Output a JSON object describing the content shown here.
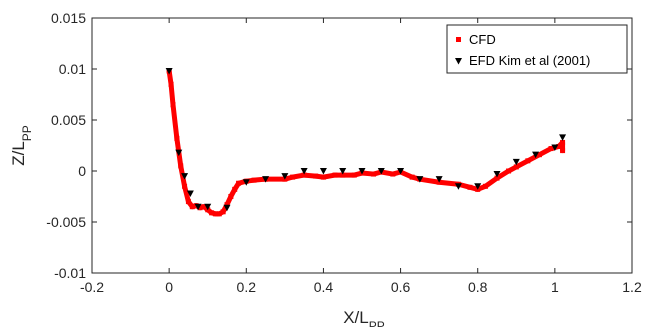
{
  "chart_data": {
    "type": "line",
    "title": "",
    "xlabel": {
      "main": "X/L",
      "sub": "PP"
    },
    "ylabel": {
      "main": "Z/L",
      "sub": "PP"
    },
    "xlim": [
      -0.2,
      1.2
    ],
    "ylim": [
      -0.01,
      0.015
    ],
    "xticks": [
      "-0.2",
      "0",
      "0.2",
      "0.4",
      "0.6",
      "0.8",
      "1",
      "1.2"
    ],
    "xtick_values": [
      -0.2,
      0,
      0.2,
      0.4,
      0.6,
      0.8,
      1.0,
      1.2
    ],
    "yticks": [
      "-0.01",
      "-0.005",
      "0",
      "0.005",
      "0.01",
      "0.015"
    ],
    "ytick_values": [
      -0.01,
      -0.005,
      0,
      0.005,
      0.01,
      0.015
    ],
    "grid": false,
    "legend_position": "top-right",
    "series": [
      {
        "name": "CFD",
        "style": "thick-line-square-markers",
        "color": "#ff0000",
        "x": [
          0.0,
          0.005,
          0.01,
          0.02,
          0.03,
          0.04,
          0.05,
          0.06,
          0.07,
          0.08,
          0.09,
          0.1,
          0.11,
          0.12,
          0.13,
          0.14,
          0.15,
          0.16,
          0.17,
          0.18,
          0.2,
          0.22,
          0.25,
          0.3,
          0.32,
          0.35,
          0.38,
          0.4,
          0.43,
          0.45,
          0.48,
          0.5,
          0.53,
          0.55,
          0.58,
          0.6,
          0.63,
          0.65,
          0.7,
          0.75,
          0.78,
          0.8,
          0.82,
          0.85,
          0.88,
          0.9,
          0.93,
          0.96,
          0.99,
          1.01,
          1.02,
          1.02
        ],
        "y": [
          0.0098,
          0.0085,
          0.0065,
          0.0032,
          0.0005,
          -0.0015,
          -0.003,
          -0.0035,
          -0.0034,
          -0.0036,
          -0.0035,
          -0.0038,
          -0.0041,
          -0.0042,
          -0.0042,
          -0.004,
          -0.0033,
          -0.0025,
          -0.0018,
          -0.0012,
          -0.001,
          -0.0009,
          -0.0008,
          -0.0008,
          -0.0006,
          -0.0004,
          -0.0005,
          -0.0006,
          -0.0004,
          -0.0004,
          -0.0004,
          -0.0002,
          -0.0003,
          -0.0001,
          -0.0003,
          -0.0001,
          -0.0006,
          -0.0008,
          -0.0011,
          -0.0013,
          -0.0016,
          -0.0018,
          -0.0015,
          -0.0007,
          0.0,
          0.0004,
          0.001,
          0.0016,
          0.0022,
          0.0024,
          0.0028,
          0.002
        ]
      },
      {
        "name": "EFD Kim et al (2001)",
        "style": "triangle-down-markers",
        "color": "#000000",
        "x": [
          0.0,
          0.025,
          0.04,
          0.055,
          0.075,
          0.1,
          0.15,
          0.2,
          0.25,
          0.3,
          0.35,
          0.4,
          0.45,
          0.5,
          0.55,
          0.6,
          0.65,
          0.7,
          0.75,
          0.8,
          0.85,
          0.9,
          0.95,
          1.0,
          1.02
        ],
        "y": [
          0.0098,
          0.0018,
          -0.0005,
          -0.0022,
          -0.0035,
          -0.0035,
          -0.0036,
          -0.0011,
          -0.0008,
          -0.0005,
          0.0,
          0.0,
          0.0,
          0.0,
          0.0,
          0.0,
          -0.0008,
          -0.0008,
          -0.0015,
          -0.0015,
          -0.0003,
          0.0009,
          0.0016,
          0.0023,
          0.0033
        ]
      }
    ]
  }
}
